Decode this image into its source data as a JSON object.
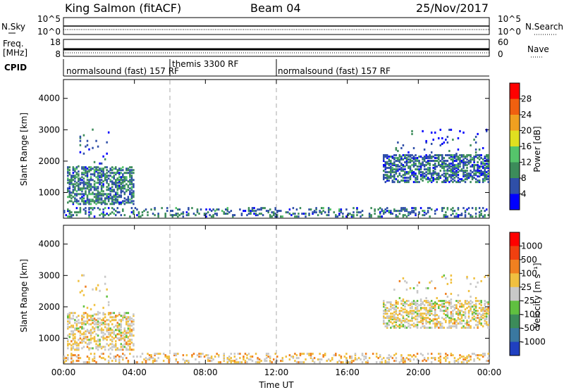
{
  "header": {
    "station": "King Salmon (fitACF)",
    "beam": "Beam 04",
    "date": "25/Nov/2017"
  },
  "strips": {
    "nsky_label": "N.Sky",
    "nsky_ticks": [
      "10^5",
      "10^0"
    ],
    "nsearch_label": "N.Search",
    "nsearch_ticks": [
      "10^5",
      "10^0"
    ],
    "freq_label_1": "Freq.",
    "freq_label_2": "[MHz]",
    "freq_ticks": [
      "18",
      "8"
    ],
    "nave_label": "Nave",
    "nave_ticks": [
      "60",
      "0"
    ],
    "cpid_label": "CPID",
    "cpid_segments": [
      {
        "label": "normalsound (fast) 157 RF",
        "start_h": 0,
        "end_h": 6
      },
      {
        "label": "themis 3300 RF",
        "start_h": 6,
        "end_h": 12
      },
      {
        "label": "normalsound (fast) 157 RF",
        "start_h": 12,
        "end_h": 24
      }
    ]
  },
  "chart_data": [
    {
      "type": "heatmap",
      "quantity": "Power",
      "ylabel": "Slant Range [km]",
      "colorbar_label": "Power [dB]",
      "colorbar_ticks": [
        "28",
        "24",
        "20",
        "16",
        "12",
        "8",
        "4"
      ],
      "colors": [
        "#0000ff",
        "#2f4fa8",
        "#3c8c5a",
        "#55c46b",
        "#e0e020",
        "#f0a020",
        "#f06010",
        "#ff0000"
      ],
      "yticks": [
        "4000",
        "3000",
        "2000",
        "1000"
      ],
      "y_range": [
        180,
        4600
      ],
      "x_range": [
        0,
        24
      ],
      "xticks": [
        "00:00",
        "04:00",
        "08:00",
        "12:00",
        "16:00",
        "20:00",
        "00:00"
      ],
      "dashed_lines_h": [
        6,
        12
      ],
      "regions": [
        {
          "t": [
            0.2,
            4.0
          ],
          "r": [
            600,
            1800
          ],
          "density": 0.55,
          "mean_color": 1.6
        },
        {
          "t": [
            0.7,
            2.6
          ],
          "r": [
            1800,
            3000
          ],
          "density": 0.04,
          "mean_color": 1.0
        },
        {
          "t": [
            0.0,
            24.0
          ],
          "r": [
            200,
            500
          ],
          "density": 0.25,
          "mean_color": 1.4
        },
        {
          "t": [
            18.0,
            24.0
          ],
          "r": [
            1300,
            2200
          ],
          "density": 0.55,
          "mean_color": 1.4
        },
        {
          "t": [
            18.5,
            24.0
          ],
          "r": [
            2200,
            3000
          ],
          "density": 0.05,
          "mean_color": 1.0
        }
      ]
    },
    {
      "type": "heatmap",
      "quantity": "Velocity",
      "ylabel": "Slant Range [km]",
      "colorbar_label": "Velocity [m s⁻¹]",
      "colorbar_ticks": [
        "1000",
        "500",
        "100",
        "25",
        "-25",
        "-100",
        "-500",
        "-1000"
      ],
      "colors": [
        "#2040c0",
        "#3a78a0",
        "#3c8c5a",
        "#60c040",
        "#c8c8c8",
        "#f0c040",
        "#f08020",
        "#f04010",
        "#ff0000"
      ],
      "yticks": [
        "4000",
        "3000",
        "2000",
        "1000"
      ],
      "y_range": [
        180,
        4600
      ],
      "x_range": [
        0,
        24
      ],
      "xticks": [
        "00:00",
        "04:00",
        "08:00",
        "12:00",
        "16:00",
        "20:00",
        "00:00"
      ],
      "xlabel": "Time UT",
      "dashed_lines_h": [
        6,
        12
      ],
      "regions": [
        {
          "t": [
            0.2,
            4.0
          ],
          "r": [
            600,
            1800
          ],
          "density": 0.45,
          "mean_color": 4.5
        },
        {
          "t": [
            0.7,
            2.6
          ],
          "r": [
            1800,
            3000
          ],
          "density": 0.03,
          "mean_color": 4.5
        },
        {
          "t": [
            0.0,
            24.0
          ],
          "r": [
            200,
            500
          ],
          "density": 0.25,
          "mean_color": 4.8
        },
        {
          "t": [
            18.0,
            24.0
          ],
          "r": [
            1300,
            2200
          ],
          "density": 0.5,
          "mean_color": 4.4
        },
        {
          "t": [
            18.5,
            24.0
          ],
          "r": [
            2200,
            3000
          ],
          "density": 0.04,
          "mean_color": 4.5
        }
      ]
    }
  ]
}
